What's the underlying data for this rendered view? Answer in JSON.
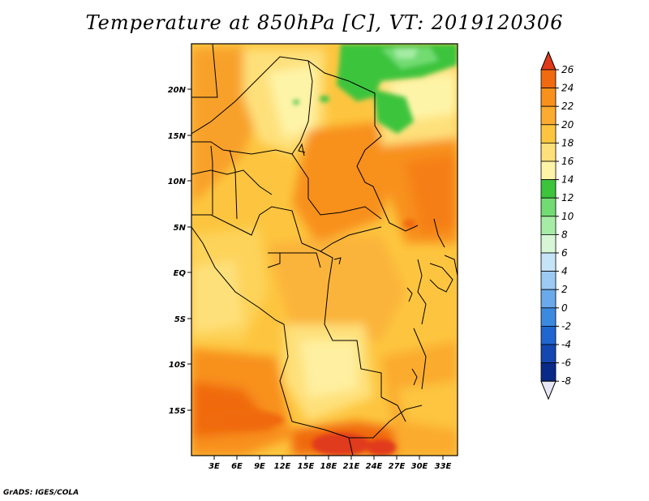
{
  "title": "Temperature at 850hPa [C], VT: 2019120306",
  "credit": "GrADS: IGES/COLA",
  "map": {
    "lon_range": [
      0,
      35
    ],
    "lat_range": [
      -20,
      25
    ],
    "y_ticks": [
      "20N",
      "15N",
      "10N",
      "5N",
      "EQ",
      "5S",
      "10S",
      "15S"
    ],
    "x_ticks": [
      "3E",
      "6E",
      "9E",
      "12E",
      "15E",
      "18E",
      "21E",
      "24E",
      "27E",
      "30E",
      "33E"
    ],
    "field": "temperature at 850 hPa",
    "units": "C",
    "valid_time": "2019120306"
  },
  "colorbar": {
    "labels": [
      "26",
      "24",
      "22",
      "20",
      "18",
      "16",
      "14",
      "12",
      "10",
      "8",
      "6",
      "4",
      "2",
      "0",
      "-2",
      "-4",
      "-6",
      "-8"
    ],
    "colors_top_to_bottom": [
      "#e03a1a",
      "#f06a10",
      "#f8901c",
      "#fbab2f",
      "#fdc53f",
      "#fee07a",
      "#fef4a8",
      "#3cc43c",
      "#72dc72",
      "#a6eca6",
      "#d6f6d6",
      "#c6e4f8",
      "#9ccaf2",
      "#6aaaea",
      "#3c8ae0",
      "#2066d0",
      "#1448b0",
      "#0a2a88"
    ],
    "over_color": "#e03a1a",
    "under_color": "#e6e6f6"
  }
}
